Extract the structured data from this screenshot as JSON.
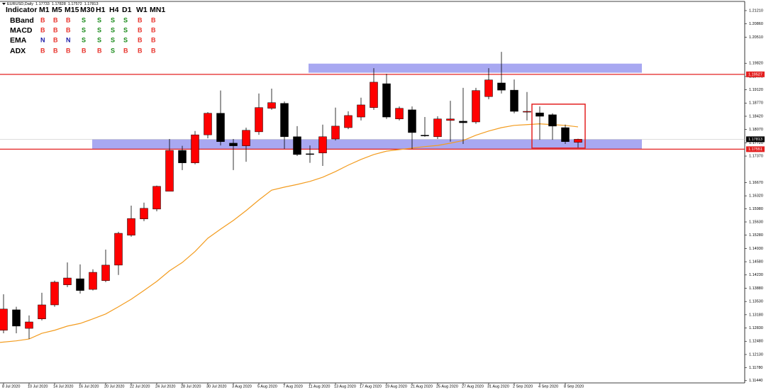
{
  "chart_data": {
    "type": "candlestick",
    "symbol": "EURUSD,Daily",
    "categories": [
      "8 Jul 2020",
      null,
      "10 Jul 2020",
      null,
      "14 Jul 2020",
      null,
      "16 Jul 2020",
      null,
      "20 Jul 2020",
      null,
      "22 Jul 2020",
      null,
      "24 Jul 2020",
      null,
      "28 Jul 2020",
      null,
      "30 Jul 2020",
      null,
      "3 Aug 2020",
      null,
      "5 Aug 2020",
      null,
      "7 Aug 2020",
      null,
      "11 Aug 2020",
      null,
      "13 Aug 2020",
      null,
      "17 Aug 2020",
      null,
      "19 Aug 2020",
      null,
      "21 Aug 2020",
      null,
      "25 Aug 2020",
      null,
      "27 Aug 2020",
      null,
      "31 Aug 2020",
      null,
      "2 Sep 2020",
      null,
      "4 Sep 2020",
      null,
      "8 Sep 2020",
      null
    ],
    "ohlc": [
      [
        1.1277,
        1.1372,
        1.1269,
        1.1333
      ],
      [
        1.1331,
        1.1339,
        1.1269,
        1.1288
      ],
      [
        1.1282,
        1.1316,
        1.1254,
        1.1299
      ],
      [
        1.1307,
        1.1376,
        1.1303,
        1.1344
      ],
      [
        1.1344,
        1.1408,
        1.1339,
        1.1404
      ],
      [
        1.1397,
        1.1456,
        1.1391,
        1.1415
      ],
      [
        1.1413,
        1.1451,
        1.1374,
        1.1382
      ],
      [
        1.1385,
        1.1438,
        1.1382,
        1.143
      ],
      [
        1.1408,
        1.149,
        1.1404,
        1.1449
      ],
      [
        1.1449,
        1.1537,
        1.1423,
        1.1533
      ],
      [
        1.1528,
        1.1606,
        1.1524,
        1.1572
      ],
      [
        1.1571,
        1.1614,
        1.1565,
        1.1599
      ],
      [
        1.1597,
        1.1659,
        1.1591,
        1.1657
      ],
      [
        1.1644,
        1.1782,
        1.1644,
        1.1752
      ],
      [
        1.1752,
        1.1764,
        1.17,
        1.1719
      ],
      [
        1.1719,
        1.1803,
        1.1715,
        1.1793
      ],
      [
        1.1793,
        1.1853,
        1.1784,
        1.185
      ],
      [
        1.185,
        1.191,
        1.1765,
        1.1775
      ],
      [
        1.1771,
        1.1782,
        1.17,
        1.1764
      ],
      [
        1.1764,
        1.1812,
        1.1722,
        1.1805
      ],
      [
        1.1801,
        1.1902,
        1.1793,
        1.1865
      ],
      [
        1.1863,
        1.1915,
        1.1859,
        1.1878
      ],
      [
        1.1876,
        1.1881,
        1.1756,
        1.1788
      ],
      [
        1.1788,
        1.1816,
        1.1737,
        1.1741
      ],
      [
        1.1743,
        1.1765,
        1.1719,
        1.1741
      ],
      [
        1.1745,
        1.182,
        1.1711,
        1.1788
      ],
      [
        1.1782,
        1.1865,
        1.1778,
        1.1816
      ],
      [
        1.1812,
        1.1855,
        1.1808,
        1.1844
      ],
      [
        1.184,
        1.1891,
        1.1831,
        1.1872
      ],
      [
        1.1865,
        1.1969,
        1.1859,
        1.1932
      ],
      [
        1.1928,
        1.1954,
        1.1835,
        1.184
      ],
      [
        1.1835,
        1.1868,
        1.1831,
        1.1863
      ],
      [
        1.1859,
        1.1868,
        1.1756,
        1.1799
      ],
      [
        1.1792,
        1.184,
        1.1788,
        1.179
      ],
      [
        1.1788,
        1.1842,
        1.1782,
        1.1835
      ],
      [
        1.1831,
        1.1883,
        1.1775,
        1.1835
      ],
      [
        1.1829,
        1.1917,
        1.1769,
        1.1825
      ],
      [
        1.1827,
        1.1917,
        1.1822,
        1.191
      ],
      [
        1.1894,
        1.1969,
        1.1887,
        1.1938
      ],
      [
        1.193,
        1.2012,
        1.1902,
        1.1911
      ],
      [
        1.1911,
        1.1939,
        1.185,
        1.1855
      ],
      [
        1.1853,
        1.1906,
        1.1831,
        1.1855
      ],
      [
        1.1851,
        1.1868,
        1.178,
        1.1842
      ],
      [
        1.1846,
        1.185,
        1.178,
        1.1816
      ],
      [
        1.1812,
        1.182,
        1.1769,
        1.1775
      ],
      [
        1.17733,
        1.17828,
        1.17572,
        1.17813
      ]
    ],
    "up_color": "#ff0000",
    "down_color": "#000000",
    "ma": {
      "color": "#f39c1f",
      "values": [
        1.1245,
        1.1249,
        1.1254,
        1.1269,
        1.1277,
        1.1288,
        1.1295,
        1.1307,
        1.132,
        1.1339,
        1.1359,
        1.1382,
        1.1406,
        1.1434,
        1.1456,
        1.1485,
        1.152,
        1.1544,
        1.1567,
        1.1593,
        1.1621,
        1.1647,
        1.1655,
        1.1662,
        1.167,
        1.1681,
        1.1696,
        1.1713,
        1.1728,
        1.1741,
        1.175,
        1.1754,
        1.1758,
        1.1762,
        1.1765,
        1.1771,
        1.1778,
        1.1792,
        1.1803,
        1.1812,
        1.1818,
        1.182,
        1.1822,
        1.182,
        1.1818,
        1.1814
      ]
    },
    "hlines": [
      1.19527,
      1.17551
    ],
    "hline_color": "#e32020",
    "zones": [
      [
        1.1957,
        1.1981
      ],
      [
        1.1755,
        1.1781
      ]
    ],
    "zone_color": "#9f9ff0",
    "box": [
      1.1758,
      1.1874
    ],
    "ylim": [
      1.1138,
      1.2149
    ],
    "yticks": [
      {
        "value": 1.2121,
        "label": "1.21210"
      },
      {
        "value": 1.2086,
        "label": "1.20860"
      },
      {
        "value": 1.2051,
        "label": "1.20510"
      },
      {
        "value": 1.1982,
        "label": "1.19820"
      },
      {
        "value": 1.1947,
        "label": "1.19470"
      },
      {
        "value": 1.1912,
        "label": "1.19120"
      },
      {
        "value": 1.1877,
        "label": "1.18770"
      },
      {
        "value": 1.1842,
        "label": "1.18420"
      },
      {
        "value": 1.1807,
        "label": "1.18070"
      },
      {
        "value": 1.1772,
        "label": "1.17720"
      },
      {
        "value": 1.1737,
        "label": "1.17370"
      },
      {
        "value": 1.1667,
        "label": "1.16670"
      },
      {
        "value": 1.1632,
        "label": "1.16320"
      },
      {
        "value": 1.1598,
        "label": "1.15980"
      },
      {
        "value": 1.1563,
        "label": "1.15630"
      },
      {
        "value": 1.1528,
        "label": "1.15280"
      },
      {
        "value": 1.1493,
        "label": "1.14930"
      },
      {
        "value": 1.1458,
        "label": "1.14580"
      },
      {
        "value": 1.1423,
        "label": "1.14230"
      },
      {
        "value": 1.1388,
        "label": "1.13880"
      },
      {
        "value": 1.1353,
        "label": "1.13530"
      },
      {
        "value": 1.1318,
        "label": "1.13180"
      },
      {
        "value": 1.1283,
        "label": "1.12830"
      },
      {
        "value": 1.1248,
        "label": "1.12480"
      },
      {
        "value": 1.1213,
        "label": "1.12130"
      },
      {
        "value": 1.1178,
        "label": "1.11780"
      },
      {
        "value": 1.1144,
        "label": "1.11440"
      }
    ],
    "grid": false
  },
  "indicator_table": {
    "header": [
      "Indicator",
      "M1",
      "M5",
      "M15",
      "M30",
      "H1",
      "H4",
      "D1",
      "W1",
      "MN1"
    ],
    "rows": [
      [
        "BBand",
        "B",
        "B",
        "B",
        "S",
        "S",
        "S",
        "S",
        "B",
        "B"
      ],
      [
        "MACD",
        "B",
        "B",
        "B",
        "S",
        "S",
        "S",
        "S",
        "B",
        "B"
      ],
      [
        "EMA",
        "N",
        "B",
        "N",
        "S",
        "S",
        "S",
        "S",
        "B",
        "B"
      ],
      [
        "ADX",
        "B",
        "B",
        "B",
        "B",
        "B",
        "S",
        "B",
        "B",
        "B"
      ]
    ],
    "signal_colors": {
      "B": "#e8312a",
      "S": "#1a8a1a",
      "N": "#1a1aa8"
    }
  }
}
